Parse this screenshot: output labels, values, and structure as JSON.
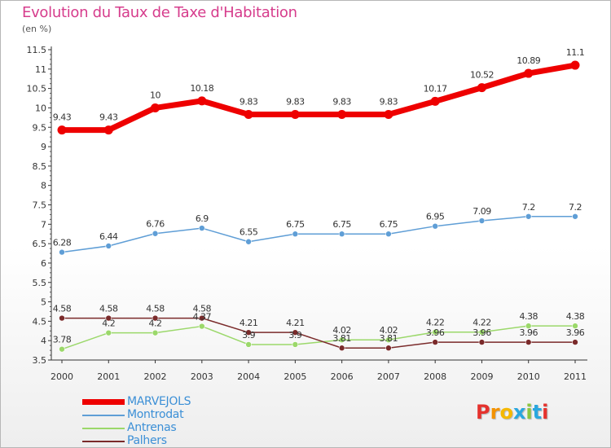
{
  "title": "Evolution du Taux de Taxe d'Habitation",
  "subtitle": "(en %)",
  "logo": {
    "text": "Proxiti",
    "letters": [
      {
        "ch": "P",
        "color": "#e5322d"
      },
      {
        "ch": "r",
        "color": "#f39200"
      },
      {
        "ch": "o",
        "color": "#f5b800"
      },
      {
        "ch": "x",
        "color": "#2aa7df"
      },
      {
        "ch": "i",
        "color": "#8cc63f"
      },
      {
        "ch": "t",
        "color": "#2aa7df"
      },
      {
        "ch": "i",
        "color": "#e5322d"
      }
    ]
  },
  "chart_data": {
    "type": "line",
    "categories": [
      "2000",
      "2001",
      "2002",
      "2003",
      "2004",
      "2005",
      "2006",
      "2007",
      "2008",
      "2009",
      "2010",
      "2011"
    ],
    "ylim": [
      3.5,
      11.5
    ],
    "yticks": [
      "3.5",
      "4",
      "4.5",
      "5",
      "5.5",
      "6",
      "6.5",
      "7",
      "7.5",
      "8",
      "8.5",
      "9",
      "9.5",
      "10",
      "10.5",
      "11",
      "11.5"
    ],
    "grid": false,
    "legend_position": "bottom-left",
    "series": [
      {
        "name": "MARVEJOLS",
        "color": "#ee0000",
        "values": [
          9.43,
          9.43,
          10,
          10.18,
          9.83,
          9.83,
          9.83,
          9.83,
          10.17,
          10.52,
          10.89,
          11.1
        ],
        "labels": [
          "9.43",
          "9.43",
          "10",
          "10.18",
          "9.83",
          "9.83",
          "9.83",
          "9.83",
          "10.17",
          "10.52",
          "10.89",
          "11.1"
        ]
      },
      {
        "name": "Montrodat",
        "color": "#5f9ed6",
        "values": [
          6.28,
          6.44,
          6.76,
          6.9,
          6.55,
          6.75,
          6.75,
          6.75,
          6.95,
          7.09,
          7.2,
          7.2
        ],
        "labels": [
          "6.28",
          "6.44",
          "6.76",
          "6.9",
          "6.55",
          "6.75",
          "6.75",
          "6.75",
          "6.95",
          "7.09",
          "7.2",
          "7.2"
        ]
      },
      {
        "name": "Antrenas",
        "color": "#9bd86a",
        "values": [
          3.78,
          4.2,
          4.2,
          4.37,
          3.9,
          3.9,
          4.02,
          4.02,
          4.22,
          4.22,
          4.38,
          4.38
        ],
        "labels": [
          "3.78",
          "4.2",
          "4.2",
          "4.37",
          "3.9",
          "3.9",
          "4.02",
          "4.02",
          "4.22",
          "4.22",
          "4.38",
          "4.38"
        ]
      },
      {
        "name": "Palhers",
        "color": "#7a2a2a",
        "values": [
          4.58,
          4.58,
          4.58,
          4.58,
          4.21,
          4.21,
          3.81,
          3.81,
          3.96,
          3.96,
          3.96,
          3.96
        ],
        "labels": [
          "4.58",
          "4.58",
          "4.58",
          "4.58",
          "4.21",
          "4.21",
          "3.81",
          "3.81",
          "3.96",
          "3.96",
          "3.96",
          "3.96"
        ]
      }
    ]
  }
}
